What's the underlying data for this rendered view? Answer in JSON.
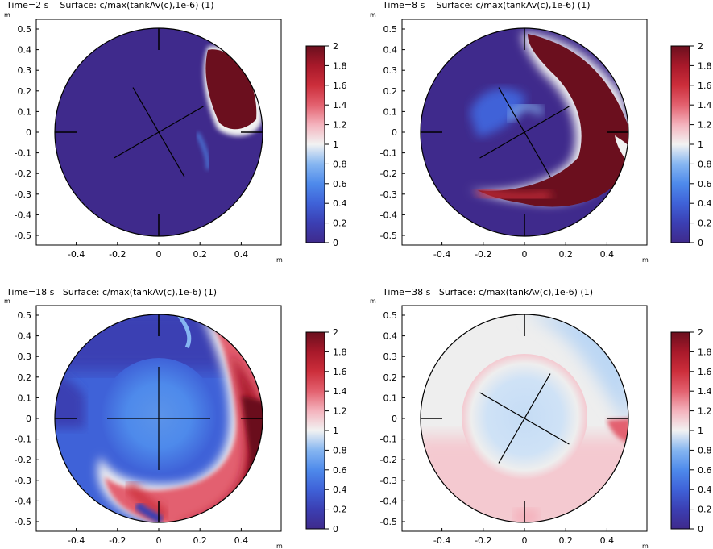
{
  "colors": {
    "c0": "#3f2a8c",
    "c02": "#3b3fb3",
    "c04": "#3f62d8",
    "c06": "#4e8aeb",
    "c08": "#86b6f1",
    "c1": "#f2f2f2",
    "c12": "#f4b3bd",
    "c14": "#e3616f",
    "c16": "#cc2e3b",
    "c18": "#a8192a",
    "c2": "#6b0f1e"
  },
  "chart_data": [
    {
      "type": "heatmap",
      "title": "Time=2 s    Surface: c/max(tankAv(c),1e-6) (1)",
      "time_label": "Time=2 s",
      "surface_label": "Surface: c/max(tankAv(c),1e-6) (1)",
      "x_unit": "m",
      "y_unit": "m",
      "xlim": [
        -0.58,
        0.58
      ],
      "ylim": [
        -0.55,
        0.55
      ],
      "x_ticks": [
        "-0.4",
        "-0.2",
        "0",
        "0.2",
        "0.4"
      ],
      "y_ticks": [
        "0.5",
        "0.4",
        "0.3",
        "0.2",
        "0.1",
        "0",
        "-0.1",
        "-0.2",
        "-0.3",
        "-0.4",
        "-0.5"
      ],
      "colorbar": {
        "min": 0,
        "max": 2,
        "ticks": [
          "2",
          "1.8",
          "1.6",
          "1.4",
          "1.2",
          "1",
          "0.8",
          "0.6",
          "0.4",
          "0.2",
          "0"
        ]
      },
      "impeller_angle_deg": 30
    },
    {
      "type": "heatmap",
      "title": "Time=8 s    Surface: c/max(tankAv(c),1e-6) (1)",
      "time_label": "Time=8 s",
      "surface_label": "Surface: c/max(tankAv(c),1e-6) (1)",
      "x_unit": "m",
      "y_unit": "m",
      "xlim": [
        -0.58,
        0.58
      ],
      "ylim": [
        -0.55,
        0.55
      ],
      "x_ticks": [
        "-0.4",
        "-0.2",
        "0",
        "0.2",
        "0.4"
      ],
      "y_ticks": [
        "0.5",
        "0.4",
        "0.3",
        "0.2",
        "0.1",
        "0",
        "-0.1",
        "-0.2",
        "-0.3",
        "-0.4",
        "-0.5"
      ],
      "colorbar": {
        "min": 0,
        "max": 2,
        "ticks": [
          "2",
          "1.8",
          "1.6",
          "1.4",
          "1.2",
          "1",
          "0.8",
          "0.6",
          "0.4",
          "0.2",
          "0"
        ]
      },
      "impeller_angle_deg": 30
    },
    {
      "type": "heatmap",
      "title": "Time=18 s   Surface: c/max(tankAv(c),1e-6) (1)",
      "time_label": "Time=18 s",
      "surface_label": "Surface: c/max(tankAv(c),1e-6) (1)",
      "x_unit": "m",
      "y_unit": "m",
      "xlim": [
        -0.58,
        0.58
      ],
      "ylim": [
        -0.55,
        0.55
      ],
      "x_ticks": [
        "-0.4",
        "-0.2",
        "0",
        "0.2",
        "0.4"
      ],
      "y_ticks": [
        "0.5",
        "0.4",
        "0.3",
        "0.2",
        "0.1",
        "0",
        "-0.1",
        "-0.2",
        "-0.3",
        "-0.4",
        "-0.5"
      ],
      "colorbar": {
        "min": 0,
        "max": 2,
        "ticks": [
          "2",
          "1.8",
          "1.6",
          "1.4",
          "1.2",
          "1",
          "0.8",
          "0.6",
          "0.4",
          "0.2",
          "0"
        ]
      },
      "impeller_angle_deg": 0
    },
    {
      "type": "heatmap",
      "title": "Time=38 s   Surface: c/max(tankAv(c),1e-6) (1)",
      "time_label": "Time=38 s",
      "surface_label": "Surface: c/max(tankAv(c),1e-6) (1)",
      "x_unit": "m",
      "y_unit": "m",
      "xlim": [
        -0.58,
        0.58
      ],
      "ylim": [
        -0.55,
        0.55
      ],
      "x_ticks": [
        "-0.4",
        "-0.2",
        "0",
        "0.2",
        "0.4"
      ],
      "y_ticks": [
        "0.5",
        "0.4",
        "0.3",
        "0.2",
        "0.1",
        "0",
        "-0.1",
        "-0.2",
        "-0.3",
        "-0.4",
        "-0.5"
      ],
      "colorbar": {
        "min": 0,
        "max": 2,
        "ticks": [
          "2",
          "1.8",
          "1.6",
          "1.4",
          "1.2",
          "1",
          "0.8",
          "0.6",
          "0.4",
          "0.2",
          "0"
        ]
      },
      "impeller_angle_deg": 60
    }
  ]
}
